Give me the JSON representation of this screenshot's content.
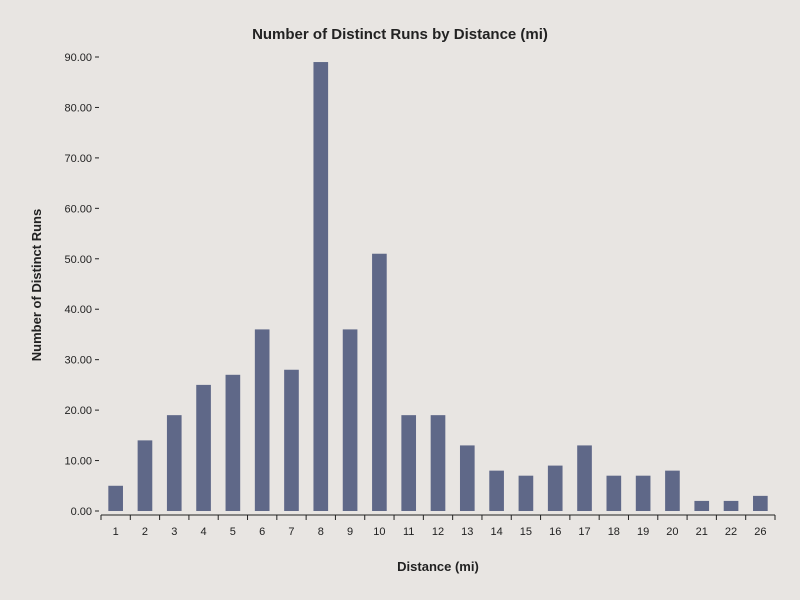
{
  "chart_data": {
    "type": "bar",
    "title": "Number of Distinct Runs by Distance (mi)",
    "xlabel": "Distance (mi)",
    "ylabel": "Number of Distinct Runs",
    "categories": [
      "1",
      "2",
      "3",
      "4",
      "5",
      "6",
      "7",
      "8",
      "9",
      "10",
      "11",
      "12",
      "13",
      "14",
      "15",
      "16",
      "17",
      "18",
      "19",
      "20",
      "21",
      "22",
      "26"
    ],
    "values": [
      5,
      14,
      19,
      25,
      27,
      36,
      28,
      89,
      36,
      51,
      19,
      19,
      13,
      8,
      7,
      9,
      13,
      7,
      7,
      8,
      2,
      2,
      3
    ],
    "ylim": [
      0,
      90
    ],
    "yticks": [
      "0.00",
      "10.00",
      "20.00",
      "30.00",
      "40.00",
      "50.00",
      "60.00",
      "70.00",
      "80.00",
      "90.00"
    ],
    "grid": false,
    "legend": "none",
    "colors": {
      "bar": "#5f6888",
      "background": "#e8e5e2",
      "axis": "#222222"
    }
  }
}
